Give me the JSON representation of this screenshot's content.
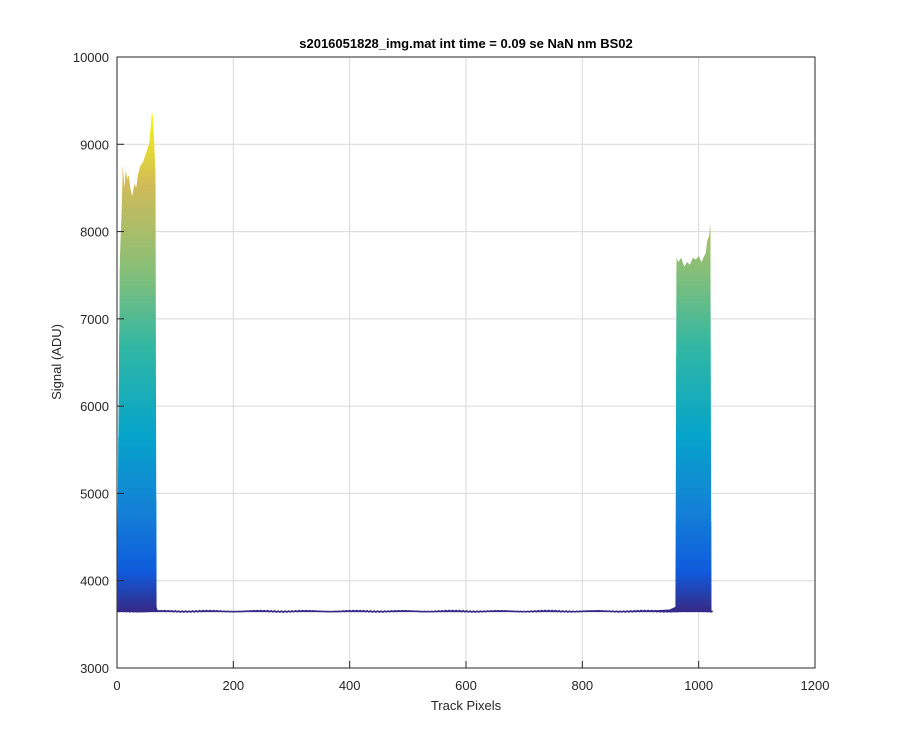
{
  "chart_data": {
    "type": "line",
    "title": "s2016051828_img.mat int time = 0.09 se  NaN nm BS02",
    "xlabel": "Track Pixels",
    "ylabel": "Signal (ADU)",
    "xlim": [
      0,
      1200
    ],
    "ylim": [
      3000,
      10000
    ],
    "xticks": [
      0,
      200,
      400,
      600,
      800,
      1000,
      1200
    ],
    "yticks": [
      3000,
      4000,
      5000,
      6000,
      7000,
      8000,
      9000,
      10000
    ],
    "xtick_labels": [
      "0",
      "200",
      "400",
      "600",
      "800",
      "1000",
      "1200"
    ],
    "ytick_labels": [
      "3000",
      "4000",
      "5000",
      "6000",
      "7000",
      "8000",
      "9000",
      "10000"
    ],
    "grid": true,
    "colormap": "parula",
    "colors": {
      "baseline": "#352a87",
      "gradient_low": "#352a87",
      "gradient_mid1": "#0f5cdd",
      "gradient_mid2": "#1481d6",
      "gradient_mid3": "#06a4ca",
      "gradient_mid4": "#2eb7a4",
      "gradient_mid5": "#87bf77",
      "gradient_mid6": "#d1bb59",
      "gradient_high": "#f9fb0e",
      "grid": "#d9d9d9",
      "axis": "#262626"
    },
    "series": [
      {
        "values_x": [
          1,
          5,
          8,
          10,
          13,
          15,
          18,
          20,
          23,
          26,
          30,
          33,
          36,
          40,
          45,
          50,
          55,
          58,
          60,
          62,
          64,
          66,
          68,
          70,
          72,
          100,
          200,
          300,
          400,
          500,
          600,
          700,
          800,
          900,
          950,
          960,
          962,
          965,
          970,
          975,
          980,
          985,
          990,
          995,
          1000,
          1005,
          1008,
          1012,
          1015,
          1018,
          1020,
          1022,
          1024
        ],
        "upper_envelope": [
          4600,
          7700,
          8250,
          8750,
          8500,
          8700,
          8600,
          8650,
          8500,
          8400,
          8550,
          8500,
          8650,
          8750,
          8800,
          8900,
          9000,
          9200,
          9380,
          9300,
          9000,
          8700,
          3700,
          3660,
          3660,
          3650,
          3650,
          3648,
          3648,
          3648,
          3648,
          3650,
          3652,
          3655,
          3670,
          3700,
          7700,
          7650,
          7700,
          7600,
          7650,
          7620,
          7700,
          7680,
          7720,
          7650,
          7700,
          7750,
          7900,
          7950,
          8100,
          3660,
          3650
        ],
        "lower_envelope": [
          3640,
          3640,
          3640,
          3640,
          3640,
          3640,
          3640,
          3640,
          3640,
          3640,
          3640,
          3640,
          3640,
          3640,
          3640,
          3640,
          3640,
          3640,
          3640,
          3640,
          3640,
          3640,
          3640,
          3640,
          3640,
          3640,
          3640,
          3640,
          3640,
          3640,
          3640,
          3640,
          3640,
          3640,
          3640,
          3640,
          3640,
          3640,
          3640,
          3640,
          3640,
          3640,
          3640,
          3640,
          3640,
          3640,
          3640,
          3640,
          3640,
          3640,
          3640,
          3640,
          3640
        ]
      }
    ]
  }
}
